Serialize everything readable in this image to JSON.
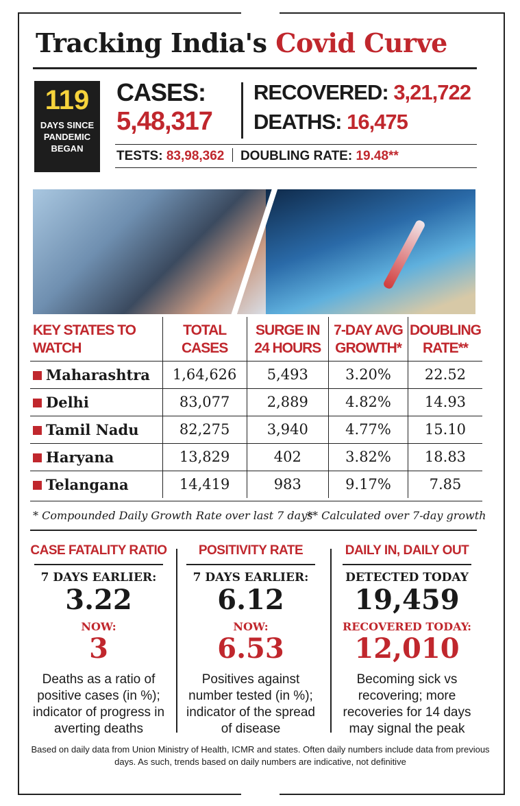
{
  "title": {
    "part1": "Tracking India's ",
    "part2": "Covid Curve"
  },
  "days": {
    "value": "119",
    "label": "DAYS SINCE PANDEMIC BEGAN"
  },
  "cases": {
    "label": "CASES:",
    "value": "5,48,317"
  },
  "recovered": {
    "label": "RECOVERED: ",
    "value": "3,21,722"
  },
  "deaths": {
    "label": "DEATHS: ",
    "value": "16,475"
  },
  "tests": {
    "label": "TESTS: ",
    "value": "83,98,362"
  },
  "doubling": {
    "label": "DOUBLING RATE: ",
    "value": "19.48**"
  },
  "photo": {
    "icon": "covid-health-worker-photo"
  },
  "table": {
    "headers": [
      "KEY STATES TO WATCH",
      "TOTAL CASES",
      "SURGE IN 24 HOURS",
      "7-DAY AVG GROWTH*",
      "DOUBLING RATE**"
    ],
    "rows": [
      {
        "state": "Maharashtra",
        "total": "1,64,626",
        "surge": "5,493",
        "growth": "3.20%",
        "doubling": "22.52"
      },
      {
        "state": "Delhi",
        "total": "83,077",
        "surge": "2,889",
        "growth": "4.82%",
        "doubling": "14.93"
      },
      {
        "state": "Tamil Nadu",
        "total": "82,275",
        "surge": "3,940",
        "growth": "4.77%",
        "doubling": "15.10"
      },
      {
        "state": "Haryana",
        "total": "13,829",
        "surge": "402",
        "growth": "3.82%",
        "doubling": "18.83"
      },
      {
        "state": "Telangana",
        "total": "14,419",
        "surge": "983",
        "growth": "9.17%",
        "doubling": "7.85"
      }
    ],
    "bullet_color": "#c0272d"
  },
  "footnotes": {
    "growth": "* Compounded Daily Growth Rate over last 7 days",
    "doubling": "** Calculated over 7-day growth"
  },
  "panels": [
    {
      "heading": "CASE FATALITY RATIO",
      "sub": "7 DAYS EARLIER:",
      "earlier": "3.22",
      "now_label": "NOW:",
      "now": "3",
      "desc": "Deaths as a ratio of positive cases (in %); indicator of progress in averting deaths"
    },
    {
      "heading": "POSITIVITY RATE",
      "sub": "7 DAYS EARLIER:",
      "earlier": "6.12",
      "now_label": "NOW:",
      "now": "6.53",
      "desc": "Positives against number tested (in %); indicator of the spread of disease"
    },
    {
      "heading": "DAILY IN, DAILY OUT",
      "sub": "DETECTED TODAY",
      "earlier": "19,459",
      "now_label": "RECOVERED TODAY:",
      "now": "12,010",
      "desc": "Becoming sick vs recovering; more recoveries for 14 days may signal the peak"
    }
  ],
  "source": "Based on daily data from Union Ministry of Health, ICMR and states. Often daily numbers include data from previous days. As such, trends based on daily numbers are indicative, not definitive",
  "colors": {
    "accent": "#c0272d",
    "highlight": "#f6d33c",
    "ink": "#1a1a1a"
  }
}
